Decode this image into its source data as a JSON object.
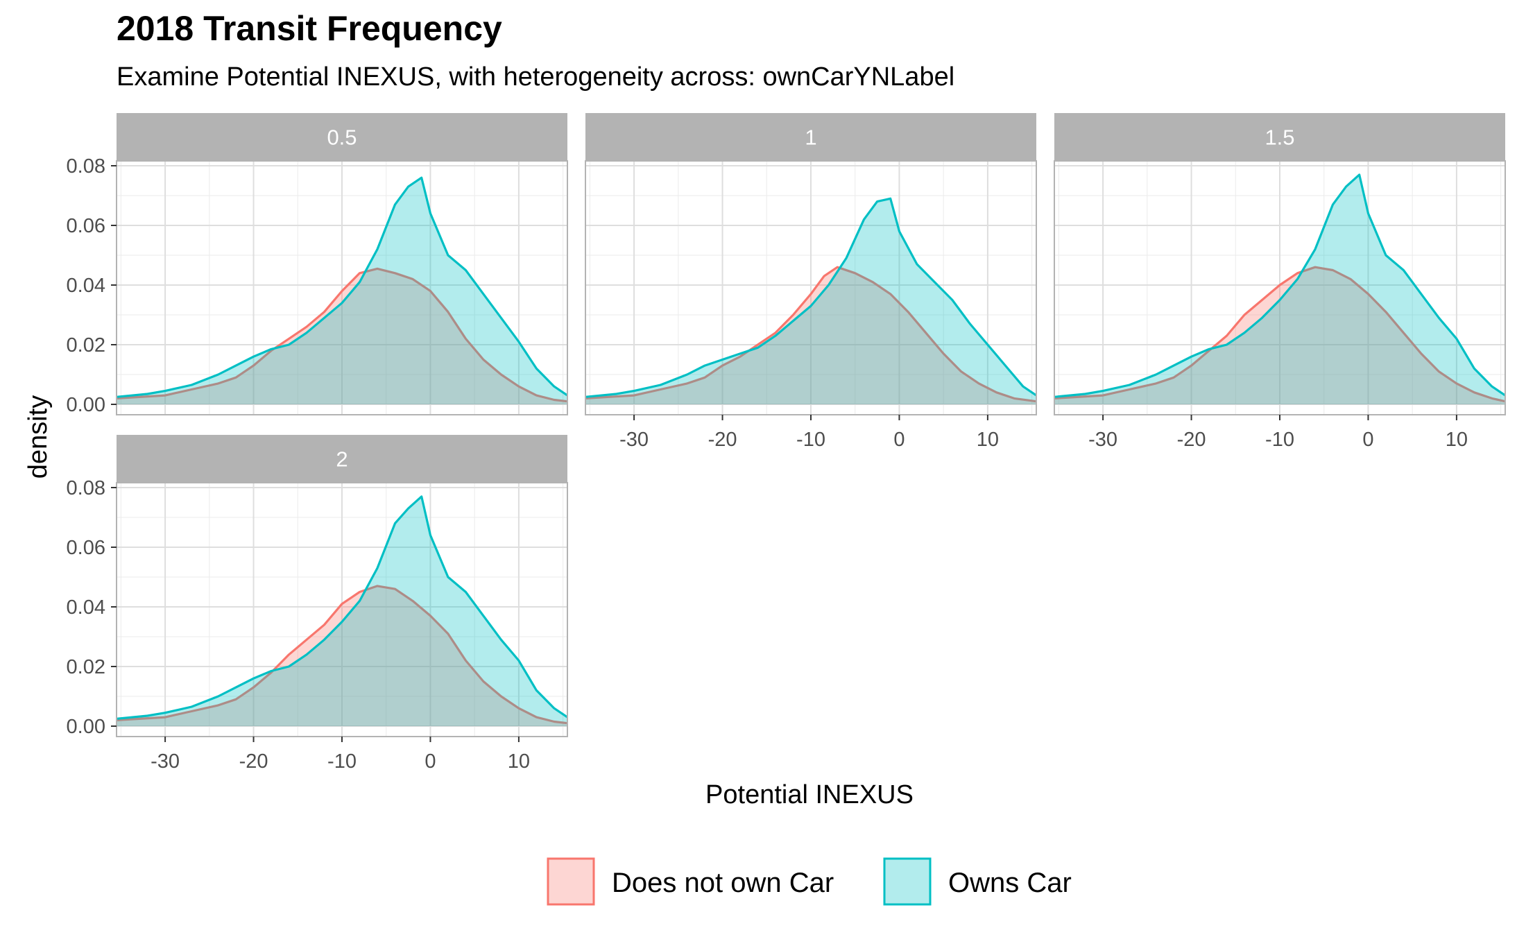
{
  "title": "2018 Transit Frequency",
  "subtitle": "Examine Potential INEXUS, with heterogeneity across: ownCarYNLabel",
  "colors": {
    "does_not_own_car_line": "#F8766D",
    "does_not_own_car_fill": "#F8766D",
    "owns_car_line": "#00BFC4",
    "owns_car_fill": "#00BFC4",
    "strip_background": "#B3B3B3",
    "grid": "#EBEBEB",
    "panel_border": "#B3B3B3"
  },
  "chart_data": {
    "type": "area",
    "facet_type": "wrap",
    "xlabel": "Potential INEXUS",
    "ylabel": "density",
    "xlim": [
      -35.5,
      15.5
    ],
    "ylim": [
      0,
      0.08
    ],
    "x_ticks": [
      -30,
      -20,
      -10,
      0,
      10
    ],
    "x_tick_labels": [
      "-30",
      "-20",
      "-10",
      "0",
      "10"
    ],
    "y_ticks": [
      0,
      0.02,
      0.04,
      0.06,
      0.08
    ],
    "y_tick_labels": [
      "0.00",
      "0.02",
      "0.04",
      "0.06",
      "0.08"
    ],
    "grid": true,
    "legend": {
      "position": "bottom",
      "entries": [
        "Does not own Car",
        "Owns Car"
      ]
    },
    "facets": [
      {
        "label": "0.5",
        "series": [
          {
            "name": "Does not own Car",
            "x": [
              -35.5,
              -30,
              -27,
              -24,
              -22,
              -20,
              -18,
              -16,
              -14,
              -12,
              -10,
              -8,
              -6,
              -4,
              -2,
              0,
              2,
              4,
              6,
              8,
              10,
              12,
              14,
              15.5
            ],
            "y": [
              0.002,
              0.003,
              0.005,
              0.007,
              0.009,
              0.013,
              0.018,
              0.022,
              0.026,
              0.031,
              0.038,
              0.044,
              0.0455,
              0.044,
              0.042,
              0.038,
              0.031,
              0.022,
              0.015,
              0.01,
              0.006,
              0.003,
              0.0015,
              0.001
            ]
          },
          {
            "name": "Owns Car",
            "x": [
              -35.5,
              -32,
              -30,
              -27,
              -24,
              -22,
              -20,
              -18,
              -16,
              -14,
              -12,
              -10,
              -8,
              -6,
              -4,
              -2.5,
              -1,
              0,
              2,
              4,
              6,
              8,
              10,
              12,
              14,
              15.5
            ],
            "y": [
              0.0025,
              0.0035,
              0.0045,
              0.0065,
              0.01,
              0.013,
              0.016,
              0.0185,
              0.02,
              0.024,
              0.029,
              0.034,
              0.041,
              0.052,
              0.067,
              0.073,
              0.076,
              0.064,
              0.05,
              0.045,
              0.037,
              0.029,
              0.021,
              0.012,
              0.006,
              0.003
            ]
          }
        ]
      },
      {
        "label": "1",
        "series": [
          {
            "name": "Does not own Car",
            "x": [
              -35.5,
              -30,
              -27,
              -24,
              -22,
              -20,
              -18,
              -16,
              -14,
              -12,
              -10,
              -8.5,
              -7,
              -5,
              -3,
              -1,
              1,
              3,
              5,
              7,
              9,
              11,
              13,
              15.5
            ],
            "y": [
              0.002,
              0.003,
              0.005,
              0.007,
              0.009,
              0.013,
              0.016,
              0.02,
              0.024,
              0.03,
              0.037,
              0.043,
              0.046,
              0.044,
              0.041,
              0.037,
              0.031,
              0.024,
              0.017,
              0.011,
              0.007,
              0.004,
              0.002,
              0.001
            ]
          },
          {
            "name": "Owns Car",
            "x": [
              -35.5,
              -32,
              -30,
              -27,
              -24,
              -22,
              -20,
              -18,
              -16,
              -14,
              -12,
              -10,
              -8,
              -6,
              -4,
              -2.5,
              -1,
              0,
              2,
              4,
              6,
              8,
              10,
              12,
              14,
              15.5
            ],
            "y": [
              0.0025,
              0.0035,
              0.0045,
              0.0065,
              0.01,
              0.013,
              0.015,
              0.017,
              0.019,
              0.023,
              0.028,
              0.033,
              0.04,
              0.049,
              0.062,
              0.068,
              0.069,
              0.058,
              0.047,
              0.041,
              0.035,
              0.027,
              0.02,
              0.013,
              0.006,
              0.003
            ]
          }
        ]
      },
      {
        "label": "1.5",
        "series": [
          {
            "name": "Does not own Car",
            "x": [
              -35.5,
              -30,
              -27,
              -24,
              -22,
              -20,
              -18,
              -16,
              -14,
              -12,
              -10,
              -8,
              -6,
              -4,
              -2,
              0,
              2,
              4,
              6,
              8,
              10,
              12,
              14,
              15.5
            ],
            "y": [
              0.002,
              0.003,
              0.005,
              0.007,
              0.009,
              0.013,
              0.018,
              0.023,
              0.03,
              0.035,
              0.04,
              0.044,
              0.046,
              0.045,
              0.042,
              0.037,
              0.031,
              0.024,
              0.017,
              0.011,
              0.007,
              0.004,
              0.002,
              0.001
            ]
          },
          {
            "name": "Owns Car",
            "x": [
              -35.5,
              -32,
              -30,
              -27,
              -24,
              -22,
              -20,
              -18,
              -16,
              -14,
              -12,
              -10,
              -8,
              -6,
              -4,
              -2.5,
              -1,
              0,
              2,
              4,
              6,
              8,
              10,
              12,
              14,
              15.5
            ],
            "y": [
              0.0025,
              0.0035,
              0.0045,
              0.0065,
              0.01,
              0.013,
              0.016,
              0.0185,
              0.02,
              0.024,
              0.029,
              0.035,
              0.042,
              0.052,
              0.067,
              0.073,
              0.077,
              0.064,
              0.05,
              0.045,
              0.037,
              0.029,
              0.022,
              0.012,
              0.006,
              0.003
            ]
          }
        ]
      },
      {
        "label": "2",
        "series": [
          {
            "name": "Does not own Car",
            "x": [
              -35.5,
              -30,
              -27,
              -24,
              -22,
              -20,
              -18,
              -16,
              -14,
              -12,
              -10,
              -8,
              -6,
              -4,
              -2,
              0,
              2,
              4,
              6,
              8,
              10,
              12,
              14,
              15.5
            ],
            "y": [
              0.002,
              0.003,
              0.005,
              0.007,
              0.009,
              0.013,
              0.018,
              0.024,
              0.029,
              0.034,
              0.041,
              0.045,
              0.047,
              0.046,
              0.042,
              0.037,
              0.031,
              0.022,
              0.015,
              0.01,
              0.006,
              0.003,
              0.0015,
              0.001
            ]
          },
          {
            "name": "Owns Car",
            "x": [
              -35.5,
              -32,
              -30,
              -27,
              -24,
              -22,
              -20,
              -18,
              -16,
              -14,
              -12,
              -10,
              -8,
              -6,
              -4,
              -2.5,
              -1,
              0,
              2,
              4,
              6,
              8,
              10,
              12,
              14,
              15.5
            ],
            "y": [
              0.0025,
              0.0035,
              0.0045,
              0.0065,
              0.01,
              0.013,
              0.016,
              0.0185,
              0.02,
              0.024,
              0.029,
              0.035,
              0.042,
              0.053,
              0.068,
              0.073,
              0.077,
              0.064,
              0.05,
              0.045,
              0.037,
              0.029,
              0.022,
              0.012,
              0.006,
              0.003
            ]
          }
        ]
      }
    ]
  }
}
